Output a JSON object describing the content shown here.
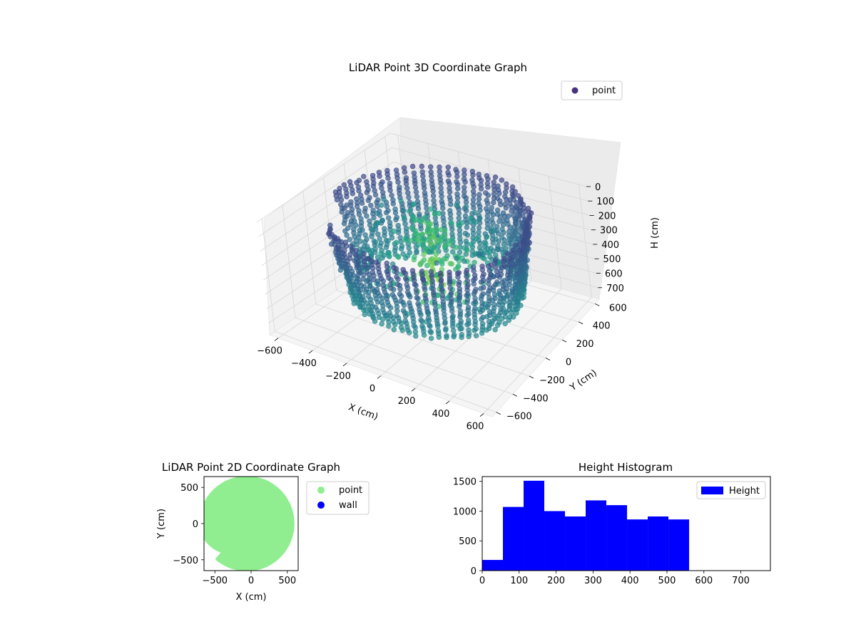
{
  "chart_data": [
    {
      "type": "scatter",
      "projection": "3d",
      "title": "LiDAR Point 3D Coordinate Graph",
      "xlabel": "X (cm)",
      "ylabel": "Y (cm)",
      "zlabel": "H (cm)",
      "xlim": [
        -650,
        650
      ],
      "ylim": [
        -650,
        650
      ],
      "zlim": [
        0,
        780
      ],
      "z_inverted": true,
      "xticks": [
        -600,
        -400,
        -200,
        0,
        200,
        400,
        600
      ],
      "yticks": [
        -600,
        -400,
        -200,
        0,
        200,
        400,
        600
      ],
      "zticks": [
        0,
        100,
        200,
        300,
        400,
        500,
        600,
        700
      ],
      "grid": true,
      "colormap": "viridis",
      "legend": {
        "placement": "upper-right",
        "entries": [
          "point"
        ]
      },
      "series": [
        {
          "name": "point",
          "color": "#46327e",
          "description_of_shape": "stacked rings of points, radius up to about 600 cm, heights 0-560 cm, gap between about -650 and -450 cm in X on the near side"
        }
      ]
    },
    {
      "type": "scatter",
      "title": "LiDAR Point 2D Coordinate Graph",
      "xlabel": "X (cm)",
      "ylabel": "Y (cm)",
      "xlim": [
        -650,
        650
      ],
      "ylim": [
        -650,
        650
      ],
      "xticks": [
        -500,
        0,
        500
      ],
      "yticks": [
        -500,
        0,
        500
      ],
      "legend": {
        "placement": "outside-right",
        "entries": [
          "point",
          "wall"
        ]
      },
      "series": [
        {
          "name": "point",
          "color": "#90ee90",
          "footprint_radius": 600
        },
        {
          "name": "wall",
          "color": "#0000ff",
          "points": []
        }
      ]
    },
    {
      "type": "bar",
      "title": "Height Histogram",
      "xlabel": "",
      "ylabel": "",
      "xlim": [
        0,
        780
      ],
      "ylim": [
        0,
        1580
      ],
      "xticks": [
        0,
        100,
        200,
        300,
        400,
        500,
        600,
        700
      ],
      "yticks": [
        0,
        500,
        1000,
        1500
      ],
      "legend": {
        "placement": "upper-right",
        "entries": [
          "Height"
        ]
      },
      "series": [
        {
          "name": "Height",
          "color": "#0000ff",
          "bin_edges": [
            0,
            56,
            112,
            168,
            224,
            280,
            336,
            392,
            448,
            504,
            560
          ],
          "values": [
            180,
            1070,
            1510,
            1000,
            910,
            1180,
            1100,
            860,
            910,
            860
          ]
        }
      ]
    }
  ]
}
